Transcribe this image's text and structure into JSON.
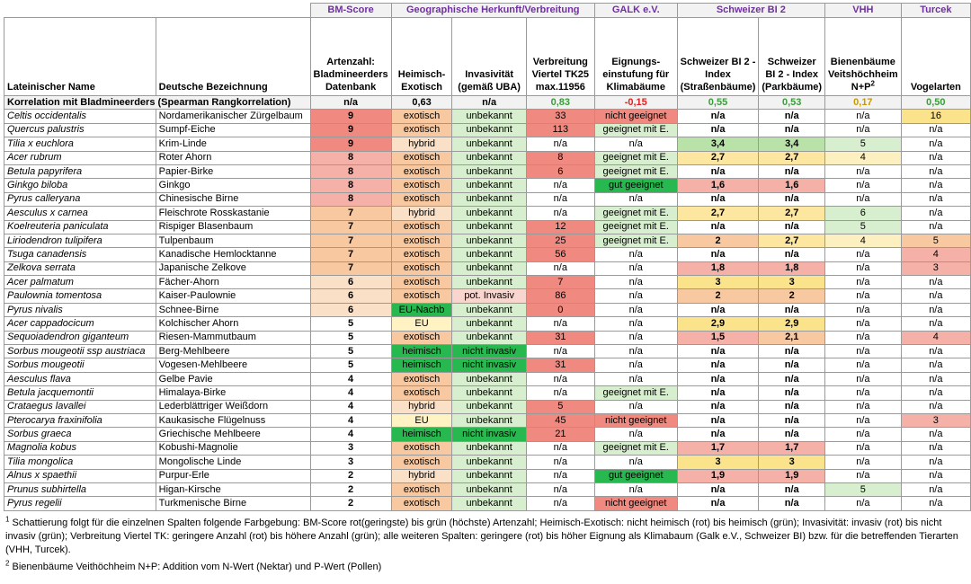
{
  "groups": [
    "BM-Score",
    "Geographische Herkunft/Verbreitung",
    "GALK e.V.",
    "Schweizer BI 2",
    "VHH",
    "Turcek"
  ],
  "headers": {
    "latin": "Lateinischer Name",
    "german": "Deutsche Bezeichnung",
    "bm": "Artenzahl: Bladmineerders Datenbank",
    "native": "Heimisch-Exotisch",
    "invasive": "Invasivität (gemäß UBA)",
    "distribution": "Verbreitung Viertel TK25 max.11956",
    "galk": "Eignungs-einstufung für Klimabäume",
    "bi_street": "Schweizer BI 2 - Index (Straßenbäume)",
    "bi_park": "Schweizer BI 2 - Index (Parkbäume)",
    "vhh_main": "Bienenbäume Veitshöchheim N+P",
    "vhh_sup": "2",
    "turcek": "Vogelarten"
  },
  "correlation": {
    "label": "Korrelation mit Bladmineerders (Spearman Rangkorrelation)",
    "values": [
      "n/a",
      "0,63",
      "n/a",
      "0,83",
      "-0,15",
      "0,55",
      "0,53",
      "0,17",
      "0,50"
    ],
    "colors": [
      "#000000",
      "#000000",
      "#000000",
      "#3a9c3a",
      "#e02020",
      "#3a9c3a",
      "#3a9c3a",
      "#c89a00",
      "#3a9c3a"
    ]
  },
  "colors": {
    "group": "#7030a0",
    "red": "#f08a80",
    "redsoft": "#f5b0a8",
    "pink": "#f9d5cf",
    "orange": "#f8c9a0",
    "peach": "#fbe0c8",
    "yellow": "#fbe38c",
    "green": "#27b84f",
    "lightgreen": "#d8efcf",
    "midgreen": "#b9e2a8"
  },
  "rows": [
    [
      "Celtis occidentalis",
      "Nordamerikanischer Zürgelbaum",
      "9",
      "exotisch",
      "unbekannt",
      "33",
      "nicht geeignet",
      "n/a",
      "n/a",
      "n/a",
      "16"
    ],
    [
      "Quercus palustris",
      "Sumpf-Eiche",
      "9",
      "exotisch",
      "unbekannt",
      "113",
      "geeignet mit E.",
      "n/a",
      "n/a",
      "n/a",
      "n/a"
    ],
    [
      "Tilia x euchlora",
      "Krim-Linde",
      "9",
      "hybrid",
      "unbekannt",
      "n/a",
      "n/a",
      "3,4",
      "3,4",
      "5",
      "n/a"
    ],
    [
      "Acer rubrum",
      "Roter Ahorn",
      "8",
      "exotisch",
      "unbekannt",
      "8",
      "geeignet mit E.",
      "2,7",
      "2,7",
      "4",
      "n/a"
    ],
    [
      "Betula papyrifera",
      "Papier-Birke",
      "8",
      "exotisch",
      "unbekannt",
      "6",
      "geeignet mit E.",
      "n/a",
      "n/a",
      "n/a",
      "n/a"
    ],
    [
      "Ginkgo biloba",
      "Ginkgo",
      "8",
      "exotisch",
      "unbekannt",
      "n/a",
      "gut geeignet",
      "1,6",
      "1,6",
      "n/a",
      "n/a"
    ],
    [
      "Pyrus calleryana",
      "Chinesische Birne",
      "8",
      "exotisch",
      "unbekannt",
      "n/a",
      "n/a",
      "n/a",
      "n/a",
      "n/a",
      "n/a"
    ],
    [
      "Aesculus x carnea",
      "Fleischrote Rosskastanie",
      "7",
      "hybrid",
      "unbekannt",
      "n/a",
      "geeignet mit E.",
      "2,7",
      "2,7",
      "6",
      "n/a"
    ],
    [
      "Koelreuteria paniculata",
      "Rispiger Blasenbaum",
      "7",
      "exotisch",
      "unbekannt",
      "12",
      "geeignet mit E.",
      "n/a",
      "n/a",
      "5",
      "n/a"
    ],
    [
      "Liriodendron tulipifera",
      "Tulpenbaum",
      "7",
      "exotisch",
      "unbekannt",
      "25",
      "geeignet mit E.",
      "2",
      "2,7",
      "4",
      "5"
    ],
    [
      "Tsuga canadensis",
      "Kanadische Hemlocktanne",
      "7",
      "exotisch",
      "unbekannt",
      "56",
      "n/a",
      "n/a",
      "n/a",
      "n/a",
      "4"
    ],
    [
      "Zelkova serrata",
      "Japanische Zelkove",
      "7",
      "exotisch",
      "unbekannt",
      "n/a",
      "n/a",
      "1,8",
      "1,8",
      "n/a",
      "3"
    ],
    [
      "Acer palmatum",
      "Fächer-Ahorn",
      "6",
      "exotisch",
      "unbekannt",
      "7",
      "n/a",
      "3",
      "3",
      "n/a",
      "n/a"
    ],
    [
      "Paulownia tomentosa",
      "Kaiser-Paulownie",
      "6",
      "exotisch",
      "pot. Invasiv",
      "86",
      "n/a",
      "2",
      "2",
      "n/a",
      "n/a"
    ],
    [
      "Pyrus nivalis",
      "Schnee-Birne",
      "6",
      "EU-Nachb",
      "unbekannt",
      "0",
      "n/a",
      "n/a",
      "n/a",
      "n/a",
      "n/a"
    ],
    [
      "Acer cappadocicum",
      "Kolchischer Ahorn",
      "5",
      "EU",
      "unbekannt",
      "n/a",
      "n/a",
      "2,9",
      "2,9",
      "n/a",
      "n/a"
    ],
    [
      "Sequoiadendron giganteum",
      "Riesen-Mammutbaum",
      "5",
      "exotisch",
      "unbekannt",
      "31",
      "n/a",
      "1,5",
      "2,1",
      "n/a",
      "4"
    ],
    [
      "Sorbus mougeotii ssp austriaca",
      "Berg-Mehlbeere",
      "5",
      "heimisch",
      "nicht invasiv",
      "n/a",
      "n/a",
      "n/a",
      "n/a",
      "n/a",
      "n/a"
    ],
    [
      "Sorbus mougeotii",
      "Vogesen-Mehlbeere",
      "5",
      "heimisch",
      "nicht invasiv",
      "31",
      "n/a",
      "n/a",
      "n/a",
      "n/a",
      "n/a"
    ],
    [
      "Aesculus flava",
      "Gelbe Pavie",
      "4",
      "exotisch",
      "unbekannt",
      "n/a",
      "n/a",
      "n/a",
      "n/a",
      "n/a",
      "n/a"
    ],
    [
      "Betula jacquemontii",
      "Himalaya-Birke",
      "4",
      "exotisch",
      "unbekannt",
      "n/a",
      "geeignet mit E.",
      "n/a",
      "n/a",
      "n/a",
      "n/a"
    ],
    [
      "Crataegus lavallei",
      "Lederblättriger Weißdorn",
      "4",
      "hybrid",
      "unbekannt",
      "5",
      "n/a",
      "n/a",
      "n/a",
      "n/a",
      "n/a"
    ],
    [
      "Pterocarya fraxinifolia",
      "Kaukasische Flügelnuss",
      "4",
      "EU",
      "unbekannt",
      "45",
      "nicht geeignet",
      "n/a",
      "n/a",
      "n/a",
      "3"
    ],
    [
      "Sorbus graeca",
      "Griechische Mehlbeere",
      "4",
      "heimisch",
      "nicht invasiv",
      "21",
      "n/a",
      "n/a",
      "n/a",
      "n/a",
      "n/a"
    ],
    [
      "Magnolia kobus",
      "Kobushi-Magnolie",
      "3",
      "exotisch",
      "unbekannt",
      "n/a",
      "geeignet mit E.",
      "1,7",
      "1,7",
      "n/a",
      "n/a"
    ],
    [
      "Tilia mongolica",
      "Mongolische Linde",
      "3",
      "exotisch",
      "unbekannt",
      "n/a",
      "n/a",
      "3",
      "3",
      "n/a",
      "n/a"
    ],
    [
      "Alnus x spaethii",
      "Purpur-Erle",
      "2",
      "hybrid",
      "unbekannt",
      "n/a",
      "gut geeignet",
      "1,9",
      "1,9",
      "n/a",
      "n/a"
    ],
    [
      "Prunus subhirtella",
      "Higan-Kirsche",
      "2",
      "exotisch",
      "unbekannt",
      "n/a",
      "n/a",
      "n/a",
      "n/a",
      "5",
      "n/a"
    ],
    [
      "Pyrus regelii",
      "Turkmenische Birne",
      "2",
      "exotisch",
      "unbekannt",
      "n/a",
      "nicht geeignet",
      "n/a",
      "n/a",
      "n/a",
      "n/a"
    ]
  ],
  "notes": {
    "n1_mark": "1",
    "n1": "Schattierung folgt für die einzelnen Spalten folgende Farbgebung: BM-Score rot(geringste) bis grün (höchste) Artenzahl; Heimisch-Exotisch: nicht heimisch (rot) bis heimisch (grün); Invasivität: invasiv (rot) bis nicht invasiv (grün); Verbreitung Viertel TK: geringere Anzahl (rot) bis höhere Anzahl (grün); alle weiteren Spalten: geringere (rot) bis höher Eignung als Klimabaum (Galk e.V., Schweizer BI) bzw. für die betreffenden Tierarten (VHH, Turcek).",
    "n2_mark": "2",
    "n2": "Bienenbäume Veithöchheim N+P: Addition vom N-Wert (Nektar) und P-Wert (Pollen)"
  }
}
